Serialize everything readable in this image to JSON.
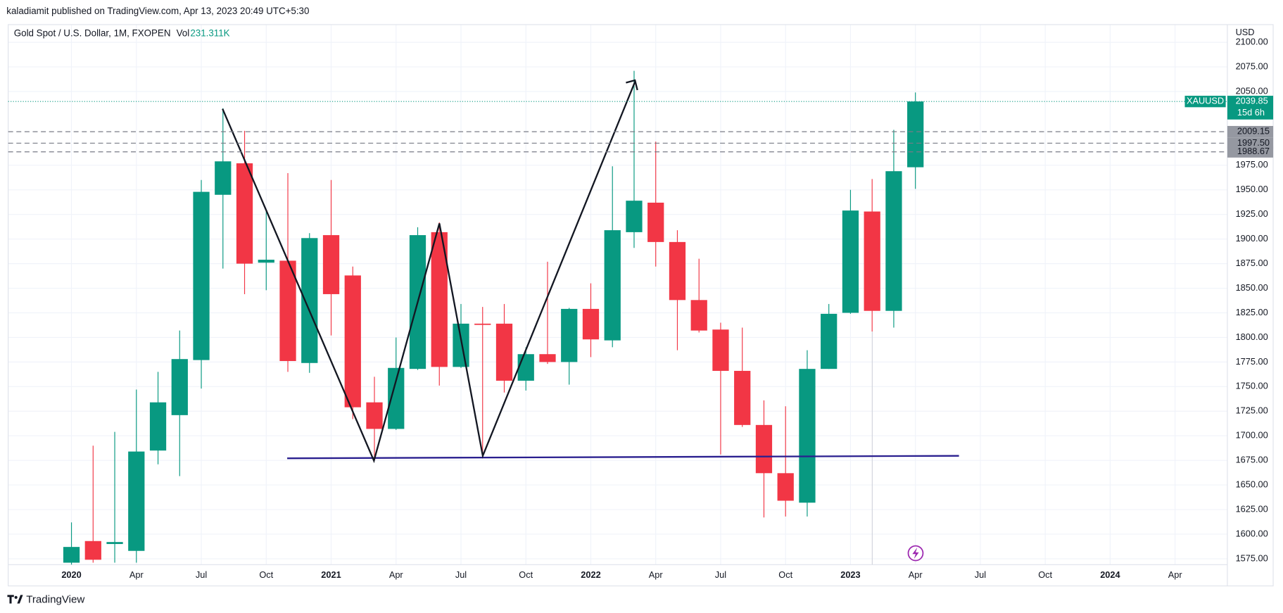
{
  "header": "kaladiamit published on TradingView.com, Apr 13, 2023 20:49 UTC+5:30",
  "footer": "TradingView",
  "chart_data": {
    "type": "candlestick",
    "title": "Gold Spot / U.S. Dollar, 1M, FXOPEN",
    "volume_label": "Vol",
    "volume": "231.311K",
    "currency": "USD",
    "symbol": "XAUUSD",
    "last_price": 2039.85,
    "countdown": "15d 6h",
    "up_color": "#089981",
    "down_color": "#f23645",
    "x": [
      "2020-01",
      "2020-02",
      "2020-03",
      "2020-04",
      "2020-05",
      "2020-06",
      "2020-07",
      "2020-08",
      "2020-09",
      "2020-10",
      "2020-11",
      "2020-12",
      "2021-01",
      "2021-02",
      "2021-03",
      "2021-04",
      "2021-05",
      "2021-06",
      "2021-07",
      "2021-08",
      "2021-09",
      "2021-10",
      "2021-11",
      "2021-12",
      "2022-01",
      "2022-02",
      "2022-03",
      "2022-04",
      "2022-05",
      "2022-06",
      "2022-07",
      "2022-08",
      "2022-09",
      "2022-10",
      "2022-11",
      "2022-12",
      "2023-01",
      "2023-02",
      "2023-03",
      "2023-04"
    ],
    "open": [
      1571,
      1593,
      1590,
      1583,
      1685,
      1721,
      1777,
      1945,
      1977,
      1876,
      1878,
      1774,
      1904,
      1863,
      1734,
      1707,
      1768,
      1907,
      1770,
      1814,
      1814,
      1756,
      1783,
      1775,
      1829,
      1797,
      1907,
      1937,
      1897,
      1838,
      1808,
      1766,
      1711,
      1662,
      1632,
      1768,
      1825,
      1928,
      1827,
      1973
    ],
    "high": [
      1612,
      1690,
      1704,
      1747,
      1765,
      1807,
      1960,
      2033,
      2010,
      1929,
      1967,
      1906,
      1960,
      1872,
      1760,
      1800,
      1912,
      1917,
      1834,
      1831,
      1834,
      1790,
      1877,
      1830,
      1855,
      1974,
      2071,
      1999,
      1909,
      1880,
      1815,
      1810,
      1736,
      1730,
      1787,
      1834,
      1950,
      1961,
      2011,
      2049
    ],
    "low": [
      1565,
      1571,
      1571,
      1571,
      1671,
      1659,
      1748,
      1870,
      1844,
      1848,
      1765,
      1764,
      1802,
      1717,
      1675,
      1706,
      1767,
      1751,
      1769,
      1679,
      1744,
      1746,
      1773,
      1752,
      1780,
      1790,
      1891,
      1872,
      1787,
      1805,
      1681,
      1709,
      1617,
      1618,
      1618,
      1768,
      1824,
      1806,
      1810,
      1951
    ],
    "close": [
      1587,
      1574,
      1592,
      1684,
      1734,
      1778,
      1948,
      1979,
      1875,
      1879,
      1776,
      1901,
      1844,
      1729,
      1707,
      1769,
      1904,
      1770,
      1814,
      1813,
      1756,
      1783,
      1775,
      1829,
      1798,
      1909,
      1939,
      1897,
      1838,
      1807,
      1766,
      1711,
      1662,
      1634,
      1768,
      1824,
      1929,
      1827,
      1969,
      2039.85
    ],
    "xlim": [
      "2019-10",
      "2024-06"
    ],
    "xticks": [
      {
        "value": "2020-01",
        "label": "2020"
      },
      {
        "value": "2020-04",
        "label": "Apr"
      },
      {
        "value": "2020-07",
        "label": "Jul"
      },
      {
        "value": "2020-10",
        "label": "Oct"
      },
      {
        "value": "2021-01",
        "label": "2021"
      },
      {
        "value": "2021-04",
        "label": "Apr"
      },
      {
        "value": "2021-07",
        "label": "Jul"
      },
      {
        "value": "2021-10",
        "label": "Oct"
      },
      {
        "value": "2022-01",
        "label": "2022"
      },
      {
        "value": "2022-04",
        "label": "Apr"
      },
      {
        "value": "2022-07",
        "label": "Jul"
      },
      {
        "value": "2022-10",
        "label": "Oct"
      },
      {
        "value": "2023-01",
        "label": "2023"
      },
      {
        "value": "2023-04",
        "label": "Apr"
      },
      {
        "value": "2023-07",
        "label": "Jul"
      },
      {
        "value": "2023-10",
        "label": "Oct"
      },
      {
        "value": "2024-01",
        "label": "2024"
      },
      {
        "value": "2024-04",
        "label": "Apr"
      }
    ],
    "ylim": [
      1569,
      2118
    ],
    "yticks": [
      {
        "value": 1575,
        "label": "1575.00"
      },
      {
        "value": 1600,
        "label": "1600.00"
      },
      {
        "value": 1625,
        "label": "1625.00"
      },
      {
        "value": 1650,
        "label": "1650.00"
      },
      {
        "value": 1675,
        "label": "1675.00"
      },
      {
        "value": 1700,
        "label": "1700.00"
      },
      {
        "value": 1725,
        "label": "1725.00"
      },
      {
        "value": 1750,
        "label": "1750.00"
      },
      {
        "value": 1775,
        "label": "1775.00"
      },
      {
        "value": 1800,
        "label": "1800.00"
      },
      {
        "value": 1825,
        "label": "1825.00"
      },
      {
        "value": 1850,
        "label": "1850.00"
      },
      {
        "value": 1875,
        "label": "1875.00"
      },
      {
        "value": 1900,
        "label": "1900.00"
      },
      {
        "value": 1925,
        "label": "1925.00"
      },
      {
        "value": 1950,
        "label": "1950.00"
      },
      {
        "value": 1975,
        "label": "1975.00"
      },
      {
        "value": 2050,
        "label": "2050.00"
      },
      {
        "value": 2075,
        "label": "2075.00"
      },
      {
        "value": 2100,
        "label": "2100.00"
      }
    ],
    "price_levels": [
      2009.15,
      {
        "value": 1997.5,
        "label": "1997.50"
      },
      1988.67
    ]
  }
}
